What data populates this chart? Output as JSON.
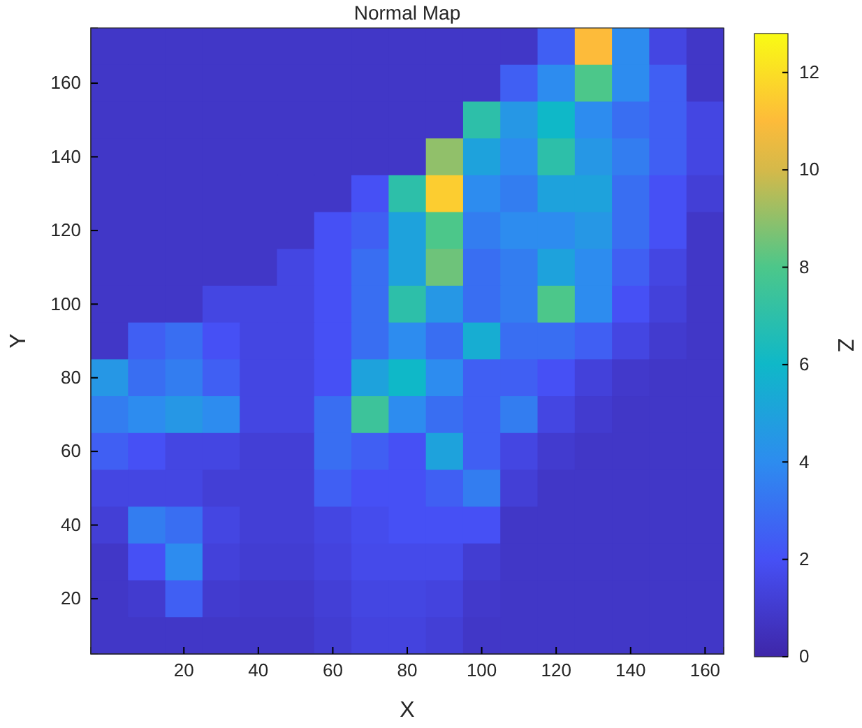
{
  "chart_data": {
    "type": "heatmap",
    "title": "Normal Map",
    "xlabel": "X",
    "ylabel": "Y",
    "clabel": "Z",
    "categories": [
      null,
      null,
      "20",
      null,
      "40",
      null,
      "60",
      null,
      "80",
      null,
      "100",
      null,
      "120",
      null,
      "140",
      null,
      "160"
    ],
    "y_categories": [
      null,
      "160",
      null,
      "140",
      null,
      "120",
      null,
      "100",
      null,
      "80",
      null,
      "60",
      null,
      "40",
      null,
      "20",
      null
    ],
    "clim": [
      0,
      12.8
    ],
    "cticks": [
      0,
      2,
      4,
      6,
      8,
      10,
      12
    ],
    "cells": [
      [
        0.8,
        0.8,
        0.8,
        0.8,
        0.8,
        0.8,
        0.8,
        0.8,
        0.8,
        0.8,
        0.8,
        0.8,
        2.5,
        11,
        4,
        1.5,
        0.8
      ],
      [
        0.8,
        0.8,
        0.8,
        0.8,
        0.8,
        0.8,
        0.8,
        0.8,
        0.8,
        0.8,
        0.8,
        2.5,
        4,
        8,
        4,
        2.5,
        0.8
      ],
      [
        0.8,
        0.8,
        0.8,
        0.8,
        0.8,
        0.8,
        0.8,
        0.8,
        0.8,
        0.8,
        7,
        4.5,
        6,
        4,
        3,
        2.5,
        1.5
      ],
      [
        0.8,
        0.8,
        0.8,
        0.8,
        0.8,
        0.8,
        0.8,
        0.8,
        0.8,
        9,
        5,
        4,
        7,
        4.5,
        3.5,
        2.5,
        1.5
      ],
      [
        0.8,
        0.8,
        0.8,
        0.8,
        0.8,
        0.8,
        0.8,
        2,
        7,
        11.5,
        4,
        3.5,
        5,
        5,
        3,
        2,
        1.2
      ],
      [
        0.8,
        0.8,
        0.8,
        0.8,
        0.8,
        0.8,
        2,
        2.5,
        5,
        8,
        3.5,
        4,
        4,
        4.5,
        3,
        2,
        0.8
      ],
      [
        0.8,
        0.8,
        0.8,
        0.8,
        0.8,
        1.5,
        2,
        3,
        5,
        8.5,
        3,
        3.5,
        5,
        4,
        2.5,
        1.5,
        0.8
      ],
      [
        0.8,
        0.8,
        0.8,
        1.5,
        1.5,
        1.5,
        2,
        3,
        7,
        4.5,
        3,
        3.5,
        8,
        4,
        2,
        1.3,
        0.8
      ],
      [
        0.8,
        2.5,
        3,
        2,
        1.5,
        1.5,
        2,
        3,
        4,
        3,
        5.5,
        3,
        3,
        2.5,
        1.5,
        1,
        0.8
      ],
      [
        4.5,
        3,
        3.5,
        2.5,
        1.5,
        1.5,
        2,
        5,
        6,
        4,
        2.5,
        2.5,
        2,
        1.3,
        0.9,
        0.8,
        0.8
      ],
      [
        3.5,
        4,
        4.5,
        4,
        1.5,
        1.5,
        3,
        7.5,
        4,
        3,
        2.5,
        3.5,
        1.5,
        1,
        0.8,
        0.8,
        0.8
      ],
      [
        2.5,
        2,
        1.5,
        1.5,
        1.2,
        1.2,
        3,
        2.5,
        2,
        5,
        2.5,
        1.5,
        1,
        0.8,
        0.8,
        0.8,
        0.8
      ],
      [
        1.5,
        1.5,
        1.5,
        1.2,
        1.2,
        1.2,
        2.5,
        2,
        2,
        2.5,
        3.5,
        1.2,
        0.8,
        0.8,
        0.8,
        0.8,
        0.8
      ],
      [
        1.2,
        3.5,
        3,
        1.5,
        1.2,
        1.2,
        1.5,
        1.8,
        2,
        2,
        2,
        0.8,
        0.8,
        0.8,
        0.8,
        0.8,
        0.8
      ],
      [
        0.8,
        2,
        4,
        1.3,
        1.1,
        1.1,
        1.4,
        1.7,
        1.7,
        1.7,
        1.1,
        0.8,
        0.8,
        0.8,
        0.8,
        0.8,
        0.8
      ],
      [
        0.8,
        1,
        2.5,
        1,
        0.9,
        0.9,
        1.2,
        1.5,
        1.5,
        1.4,
        0.9,
        0.8,
        0.8,
        0.8,
        0.8,
        0.8,
        0.8
      ],
      [
        0.8,
        0.8,
        0.8,
        0.8,
        0.8,
        0.8,
        1.1,
        1.4,
        1.4,
        1.2,
        0.8,
        0.8,
        0.8,
        0.8,
        0.8,
        0.8,
        0.8
      ]
    ]
  }
}
